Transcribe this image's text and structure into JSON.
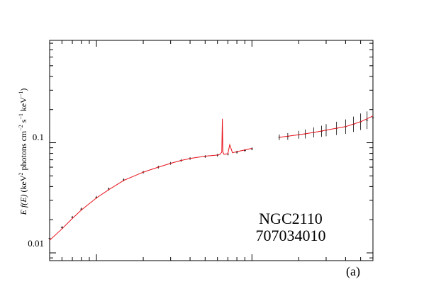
{
  "chart_data": {
    "type": "scatter",
    "title": "",
    "xlabel": "",
    "ylabel": "E f(E) (keV² photons cm⁻² s⁻¹ keV⁻¹)",
    "ylabel_parts": {
      "var": "E f(E)",
      "rest": " (keV",
      "sup1": "2",
      "mid1": " photons cm",
      "sup2": "−2",
      "mid2": " s",
      "sup3": "−1",
      "mid3": " keV",
      "sup4": "−1",
      "end": ")"
    },
    "xscale": "log",
    "yscale": "log",
    "xlim": [
      0.5,
      60
    ],
    "ylim": [
      0.0085,
      0.85
    ],
    "ytick_labels": [
      {
        "value": 0.01,
        "label": "0.01"
      },
      {
        "value": 0.1,
        "label": "0.1"
      }
    ],
    "annotations": [
      "NGC2110",
      "707034010"
    ],
    "panel_label": "(a)",
    "grid": false,
    "series": [
      {
        "values_role": "data-soft",
        "x": [
          0.5,
          0.6,
          0.7,
          0.8,
          1.0,
          1.2,
          1.5,
          2.0,
          2.5,
          3.0,
          3.5,
          4.0,
          5.0,
          6.0,
          7.0,
          8.0,
          9.0,
          10.0
        ],
        "y": [
          0.0135,
          0.017,
          0.021,
          0.025,
          0.032,
          0.038,
          0.046,
          0.054,
          0.06,
          0.065,
          0.069,
          0.072,
          0.075,
          0.077,
          0.079,
          0.082,
          0.085,
          0.088
        ]
      },
      {
        "values_role": "data-hard",
        "x": [
          15,
          17,
          20,
          22,
          25,
          28,
          30,
          35,
          40,
          45,
          50,
          55,
          60
        ],
        "y": [
          0.112,
          0.114,
          0.118,
          0.12,
          0.124,
          0.127,
          0.13,
          0.135,
          0.14,
          0.147,
          0.155,
          0.16,
          0.168
        ]
      },
      {
        "values_role": "model",
        "x": [
          0.5,
          0.6,
          0.7,
          0.8,
          1.0,
          1.2,
          1.5,
          2.0,
          2.5,
          3.0,
          3.5,
          4.0,
          5.0,
          5.8,
          6.0,
          6.2,
          6.4,
          6.45,
          6.5,
          6.6,
          7.0,
          7.2,
          7.5,
          8.0,
          9.0,
          10.0,
          15,
          20,
          25,
          30,
          40,
          50,
          60
        ],
        "y": [
          0.013,
          0.0165,
          0.0205,
          0.0245,
          0.0315,
          0.0375,
          0.0455,
          0.054,
          0.06,
          0.065,
          0.069,
          0.072,
          0.0755,
          0.077,
          0.0775,
          0.078,
          0.082,
          0.165,
          0.083,
          0.0785,
          0.0795,
          0.096,
          0.081,
          0.083,
          0.086,
          0.089,
          0.112,
          0.118,
          0.124,
          0.13,
          0.14,
          0.155,
          0.175
        ]
      }
    ]
  }
}
